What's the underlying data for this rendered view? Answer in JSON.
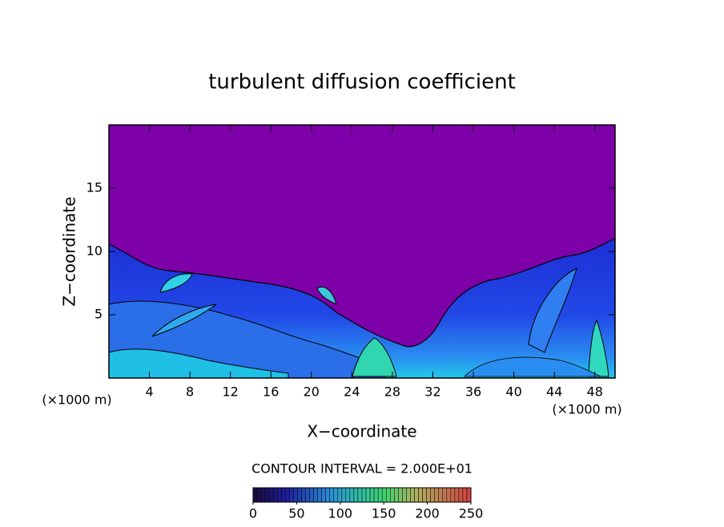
{
  "chart_data": {
    "type": "contour",
    "title": "turbulent diffusion coefficient",
    "x_label": "X−coordinate",
    "y_label": "Z−coordinate",
    "x_unit": "(×1000 m)",
    "xlim": [
      0,
      50
    ],
    "xticks": [
      4,
      8,
      12,
      16,
      20,
      24,
      28,
      32,
      36,
      40,
      44,
      48
    ],
    "ylim": [
      0,
      20
    ],
    "yticks": [
      5,
      10,
      15
    ],
    "contour_interval_label": "CONTOUR INTERVAL = 2.000E+01",
    "colorbar": {
      "lim": [
        0,
        250
      ],
      "ticks": [
        0,
        50,
        100,
        150,
        200,
        250
      ]
    }
  }
}
